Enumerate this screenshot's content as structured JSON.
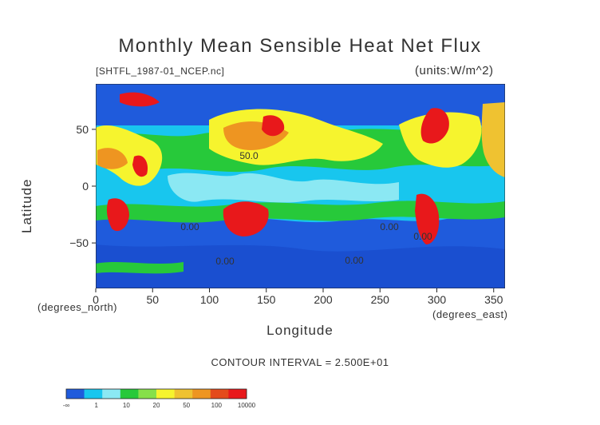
{
  "chart_data": {
    "type": "heatmap",
    "title": "Monthly Mean Sensible Heat Net Flux",
    "file_label": "[SHTFL_1987-01_NCEP.nc]",
    "units": "(units:W/m^2)",
    "xlabel": "Longitude",
    "ylabel": "Latitude",
    "x_units_label": "(degrees_east)",
    "y_units_label": "(degrees_north)",
    "xlim": [
      0,
      360
    ],
    "ylim": [
      -90,
      90
    ],
    "x_ticks": [
      "0",
      "50",
      "100",
      "150",
      "200",
      "250",
      "300",
      "350"
    ],
    "y_ticks": [
      "50",
      "0",
      "−50"
    ],
    "contour_interval": "CONTOUR INTERVAL = 2.500E+01",
    "contour_labels": [
      "50.0",
      "0.00",
      "0.00",
      "0.00",
      "0.00",
      "0.00"
    ],
    "colorbar": {
      "tick_labels": [
        "-∞",
        "1",
        "10",
        "20",
        "50",
        "100",
        "10000"
      ],
      "colors": [
        "#1f5bdc",
        "#18c6ee",
        "#8be8f3",
        "#27c93a",
        "#86e04a",
        "#f6f42e",
        "#efc231",
        "#ee9521",
        "#e44b1b",
        "#e8181b"
      ]
    }
  }
}
